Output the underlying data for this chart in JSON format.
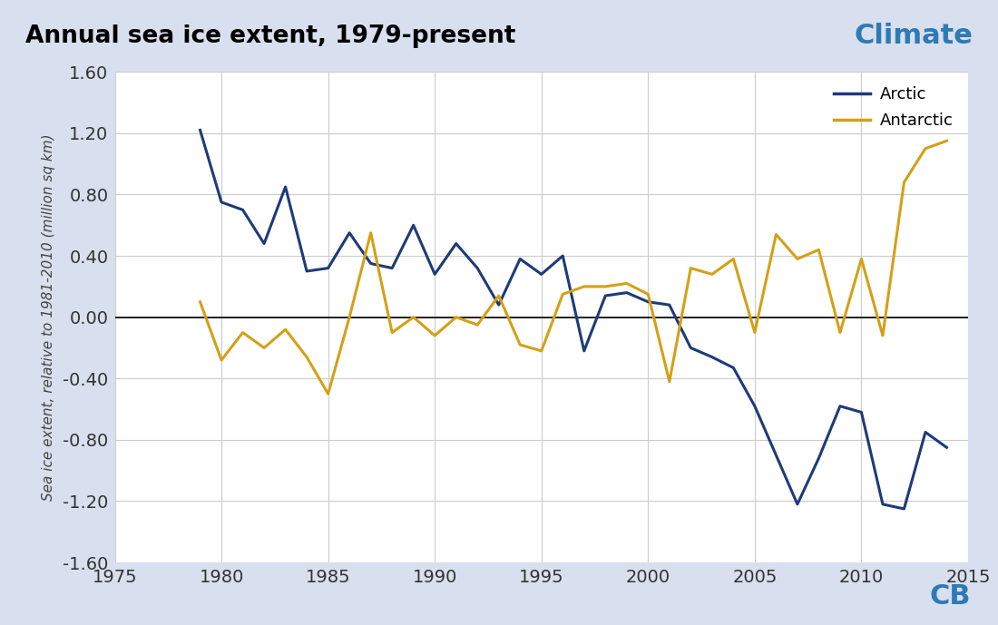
{
  "title": "Annual sea ice extent, 1979-present",
  "climate_label": "Climate",
  "ylabel": "Sea ice extent, relative to 1981-2010 (million sq km)",
  "background_color": "#d8dfee",
  "plot_bg_color": "#ffffff",
  "arctic_color": "#1e3a78",
  "antarctic_color": "#d4a017",
  "cb_color": "#2e7ab5",
  "title_fontsize": 19,
  "climate_fontsize": 22,
  "ylabel_fontsize": 11,
  "tick_fontsize": 14,
  "legend_fontsize": 13,
  "xlim": [
    1975,
    2015
  ],
  "ylim": [
    -1.6,
    1.6
  ],
  "yticks": [
    -1.6,
    -1.2,
    -0.8,
    -0.4,
    0.0,
    0.4,
    0.8,
    1.2,
    1.6
  ],
  "xticks": [
    1975,
    1980,
    1985,
    1990,
    1995,
    2000,
    2005,
    2010,
    2015
  ],
  "arctic_years": [
    1979,
    1980,
    1981,
    1982,
    1983,
    1984,
    1985,
    1986,
    1987,
    1988,
    1989,
    1990,
    1991,
    1992,
    1993,
    1994,
    1995,
    1996,
    1997,
    1998,
    1999,
    2000,
    2001,
    2002,
    2003,
    2004,
    2005,
    2006,
    2007,
    2008,
    2009,
    2010,
    2011,
    2012,
    2013,
    2014
  ],
  "arctic_values": [
    1.22,
    0.75,
    0.7,
    0.48,
    0.85,
    0.3,
    0.32,
    0.55,
    0.35,
    0.32,
    0.6,
    0.28,
    0.48,
    0.32,
    0.08,
    0.38,
    0.28,
    0.4,
    -0.22,
    0.14,
    0.16,
    0.1,
    0.08,
    -0.2,
    -0.26,
    -0.33,
    -0.58,
    -0.9,
    -1.22,
    -0.92,
    -0.58,
    -0.62,
    -1.22,
    -1.25,
    -0.75,
    -0.85
  ],
  "antarctic_years": [
    1979,
    1980,
    1981,
    1982,
    1983,
    1984,
    1985,
    1986,
    1987,
    1988,
    1989,
    1990,
    1991,
    1992,
    1993,
    1994,
    1995,
    1996,
    1997,
    1998,
    1999,
    2000,
    2001,
    2002,
    2003,
    2004,
    2005,
    2006,
    2007,
    2008,
    2009,
    2010,
    2011,
    2012,
    2013,
    2014
  ],
  "antarctic_values": [
    0.1,
    -0.28,
    -0.1,
    -0.2,
    -0.08,
    -0.26,
    -0.5,
    0.0,
    0.55,
    -0.1,
    0.0,
    -0.12,
    0.0,
    -0.05,
    0.14,
    -0.18,
    -0.22,
    0.15,
    0.2,
    0.2,
    0.22,
    0.15,
    -0.42,
    0.32,
    0.28,
    0.38,
    -0.1,
    0.54,
    0.38,
    0.44,
    -0.1,
    0.38,
    -0.12,
    0.88,
    1.1,
    1.15
  ]
}
